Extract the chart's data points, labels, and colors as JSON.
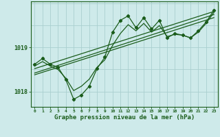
{
  "title": "Graphe pression niveau de la mer (hPa)",
  "bg_color": "#ceeaea",
  "plot_bg_color": "#ceeaea",
  "grid_color": "#aacfcf",
  "line_color": "#1a5c1a",
  "xmin": -0.5,
  "xmax": 23.5,
  "ymin": 1017.65,
  "ymax": 1020.05,
  "yticks": [
    1018,
    1019
  ],
  "xticks": [
    0,
    1,
    2,
    3,
    4,
    5,
    6,
    7,
    8,
    9,
    10,
    11,
    12,
    13,
    14,
    15,
    16,
    17,
    18,
    19,
    20,
    21,
    22,
    23
  ],
  "main_line_x": [
    0,
    1,
    2,
    3,
    4,
    5,
    6,
    7,
    8,
    9,
    10,
    11,
    12,
    13,
    14,
    15,
    16,
    17,
    18,
    19,
    20,
    21,
    22,
    23
  ],
  "main_line_y": [
    1018.62,
    1018.75,
    1018.62,
    1018.55,
    1018.27,
    1017.82,
    1017.92,
    1018.12,
    1018.52,
    1018.78,
    1019.35,
    1019.62,
    1019.72,
    1019.45,
    1019.68,
    1019.42,
    1019.62,
    1019.22,
    1019.32,
    1019.28,
    1019.22,
    1019.38,
    1019.58,
    1019.85
  ],
  "smooth_line_x": [
    0,
    1,
    2,
    3,
    4,
    5,
    6,
    7,
    8,
    9,
    10,
    11,
    12,
    13,
    14,
    15,
    16,
    17,
    18,
    19,
    20,
    21,
    22,
    23
  ],
  "smooth_line_y": [
    1018.58,
    1018.68,
    1018.58,
    1018.5,
    1018.3,
    1018.02,
    1018.12,
    1018.28,
    1018.55,
    1018.72,
    1019.05,
    1019.32,
    1019.52,
    1019.38,
    1019.55,
    1019.35,
    1019.5,
    1019.25,
    1019.3,
    1019.28,
    1019.22,
    1019.35,
    1019.55,
    1019.8
  ],
  "trend1_x": [
    0,
    23
  ],
  "trend1_y": [
    1018.52,
    1019.82
  ],
  "trend2_x": [
    0,
    23
  ],
  "trend2_y": [
    1018.42,
    1019.75
  ],
  "trend3_x": [
    0,
    23
  ],
  "trend3_y": [
    1018.38,
    1019.68
  ]
}
